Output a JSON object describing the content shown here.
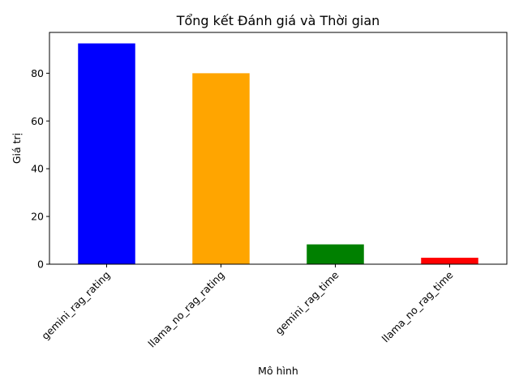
{
  "chart_data": {
    "type": "bar",
    "title": "Tổng kết Đánh giá và Thời gian",
    "xlabel": "Mô hình",
    "ylabel": "Giá trị",
    "categories": [
      "gemini_rag_rating",
      "llama_no_rag_rating",
      "gemini_rag_time",
      "llama_no_rag_time"
    ],
    "values": [
      92.5,
      80.0,
      8.3,
      2.7
    ],
    "colors": [
      "#0000ff",
      "#ffa500",
      "#008000",
      "#ff0000"
    ],
    "ylim": [
      0,
      97.1
    ],
    "yticks": [
      0,
      20,
      40,
      60,
      80
    ],
    "grid": false,
    "legend": "none"
  }
}
